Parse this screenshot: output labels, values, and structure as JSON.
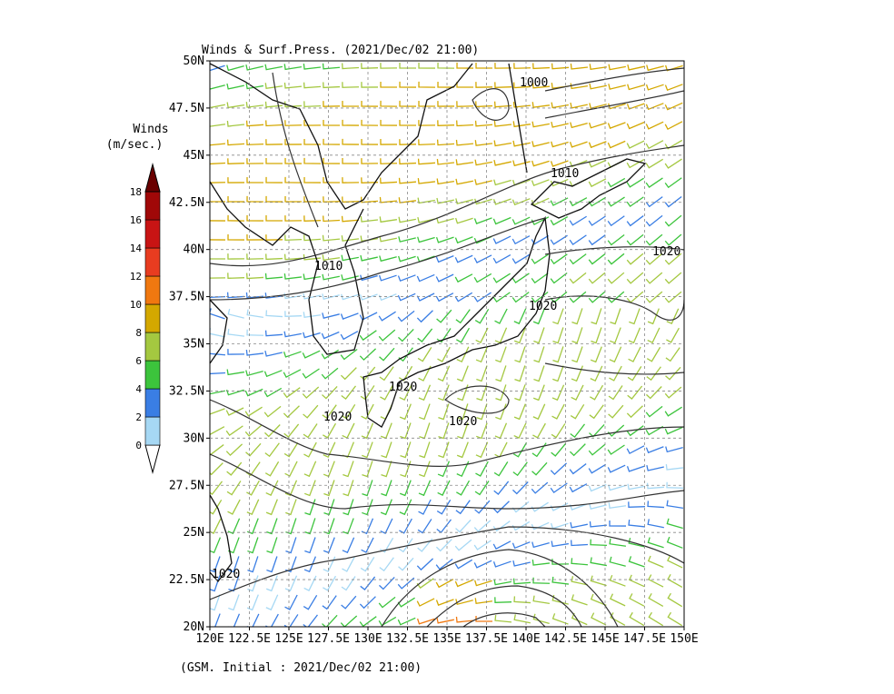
{
  "header": {
    "title": "Winds & Surf.Press. (2021/Dec/02 21:00)"
  },
  "footer": {
    "text": "(GSM. Initial : 2021/Dec/02 21:00)"
  },
  "colorbar": {
    "title": [
      "Winds",
      "(m/sec.)"
    ],
    "levels": [
      0,
      2,
      4,
      6,
      8,
      10,
      12,
      14,
      16,
      18
    ],
    "colors": [
      "#a6d8f4",
      "#3a7ee4",
      "#3cc43c",
      "#a4c840",
      "#d4a800",
      "#f07810",
      "#e83c20",
      "#c81414",
      "#a00808",
      "#6a0000"
    ]
  },
  "axes": {
    "lon_ticks": [
      "120E",
      "122.5E",
      "125E",
      "127.5E",
      "130E",
      "132.5E",
      "135E",
      "137.5E",
      "140E",
      "142.5E",
      "145E",
      "147.5E",
      "150E"
    ],
    "lat_ticks": [
      "50N",
      "47.5N",
      "45N",
      "42.5N",
      "40N",
      "37.5N",
      "35N",
      "32.5N",
      "30N",
      "27.5N",
      "25N",
      "22.5N",
      "20N"
    ]
  },
  "contour_labels": [
    "1000",
    "1010",
    "1010",
    "1020",
    "1020",
    "1020",
    "1020",
    "1020",
    "1020"
  ]
}
